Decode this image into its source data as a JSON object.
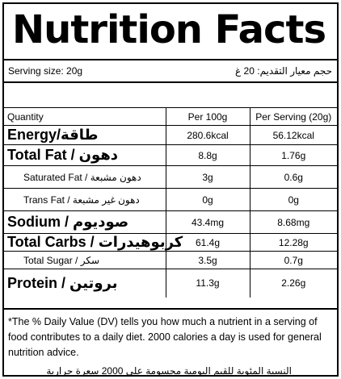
{
  "title": "Nutrition Facts",
  "serving": {
    "en": "Serving size: 20g",
    "ar": "حجم معيار التقديم: 20 غ"
  },
  "header": {
    "quantity": "Quantity",
    "per100": "Per 100g",
    "perServing": "Per Serving (20g)"
  },
  "rows": {
    "energy": {
      "label": "Energy/طاقة",
      "per100": "280.6kcal",
      "perServing": "56.12kcal"
    },
    "fat": {
      "label": "Total Fat / دهون",
      "per100": "8.8g",
      "perServing": "1.76g"
    },
    "satfat": {
      "label": "Saturated Fat / دهون مشبعة",
      "per100": "3g",
      "perServing": "0.6g"
    },
    "transfat": {
      "label": "Trans Fat / دهون غير مشبعة",
      "per100": "0g",
      "perServing": "0g"
    },
    "sodium": {
      "label": "Sodium / صوديوم",
      "per100": "43.4mg",
      "perServing": "8.68mg"
    },
    "carbs": {
      "label": "Total Carbs / كربوهيدرات",
      "per100": "61.4g",
      "perServing": "12.28g"
    },
    "sugar": {
      "label": "Total Sugar / سكر",
      "per100": "3.5g",
      "perServing": "0.7g"
    },
    "protein": {
      "label": "Protein / بروتين",
      "per100": "11.3g",
      "perServing": "2.26g"
    }
  },
  "footnote": {
    "en": "*The % Daily Value (DV) tells you how much a nutrient in a serving of food contributes to a daily diet. 2000 calories a day is used for general nutrition advice.",
    "ar": "النسبة المئوية للقيم اليومية محسومة على 2000 سعرة حرارية"
  }
}
